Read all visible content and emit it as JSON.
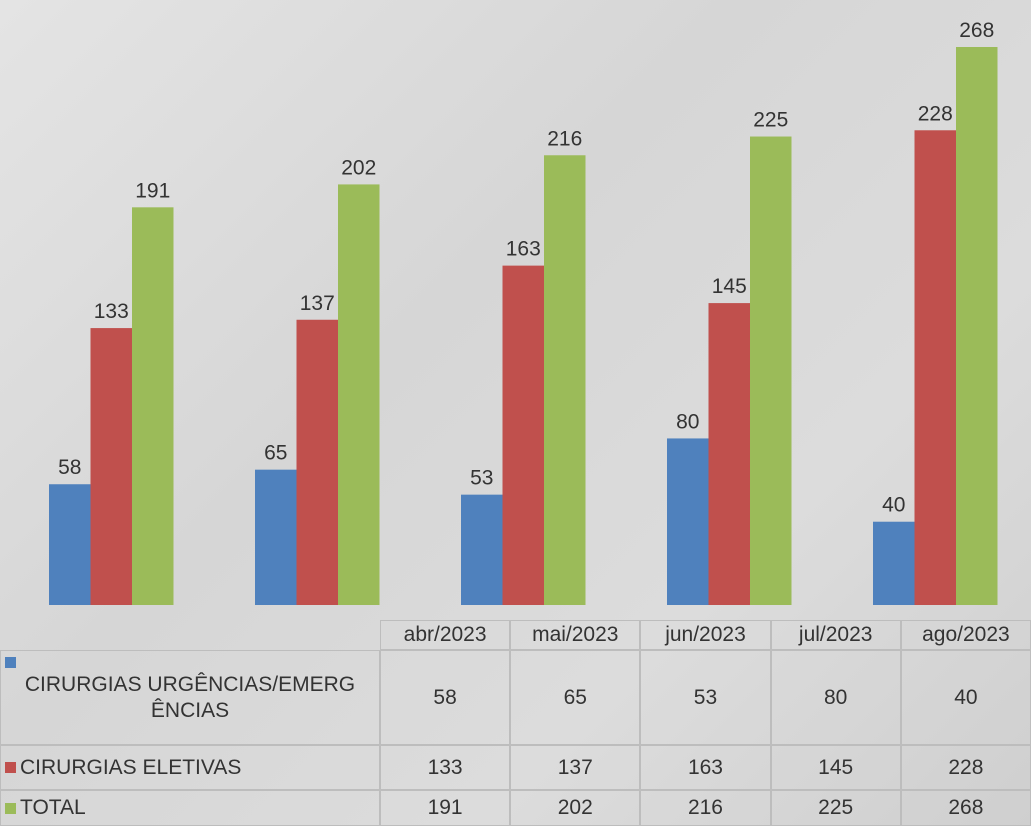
{
  "chart_data": {
    "type": "bar",
    "categories": [
      "abr/2023",
      "mai/2023",
      "jun/2023",
      "jul/2023",
      "ago/2023"
    ],
    "series": [
      {
        "name": "CIRURGIAS URGÊNCIAS/EMERGÊNCIAS",
        "color": "#4f81bd",
        "values": [
          58,
          65,
          53,
          80,
          40
        ]
      },
      {
        "name": "CIRURGIAS ELETIVAS",
        "color": "#c0504d",
        "values": [
          133,
          137,
          163,
          145,
          228
        ]
      },
      {
        "name": "TOTAL",
        "color": "#9bbb59",
        "values": [
          191,
          202,
          216,
          225,
          268
        ]
      }
    ]
  }
}
